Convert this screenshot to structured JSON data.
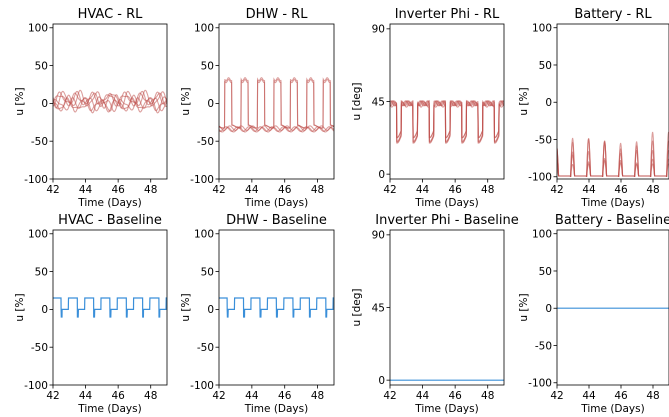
{
  "colors": {
    "rl": "#c0504d",
    "baseline": "#3a8fd9"
  },
  "chart_data": [
    {
      "type": "line",
      "title": "HVAC - RL",
      "xlabel": "Time (Days)",
      "ylabel": "u [%]",
      "xlim": [
        42,
        49
      ],
      "ylim": [
        -100,
        105
      ],
      "xticks": [
        42,
        44,
        46,
        48
      ],
      "yticks": [
        -100,
        -50,
        0,
        50,
        100
      ],
      "pattern": "hvac_rl",
      "series_count": 6
    },
    {
      "type": "line",
      "title": "DHW - RL",
      "xlabel": "Time (Days)",
      "ylabel": "u [%]",
      "xlim": [
        42,
        49
      ],
      "ylim": [
        -100,
        105
      ],
      "xticks": [
        42,
        44,
        46,
        48
      ],
      "yticks": [
        -100,
        -50,
        0,
        50,
        100
      ],
      "pattern": "dhw_rl",
      "series_count": 5,
      "daily_high": 33,
      "daily_low": -30
    },
    {
      "type": "line",
      "title": "Inverter Phi - RL",
      "xlabel": "Time (Days)",
      "ylabel": "u [deg]",
      "xlim": [
        42,
        49
      ],
      "ylim": [
        -3,
        93
      ],
      "xticks": [
        42,
        44,
        46,
        48
      ],
      "yticks": [
        0,
        45,
        90
      ],
      "pattern": "inv_rl",
      "series_count": 5,
      "daily_high": 42,
      "daily_low": 22
    },
    {
      "type": "line",
      "title": "Battery - RL",
      "xlabel": "Time (Days)",
      "ylabel": "u [%]",
      "xlim": [
        42,
        49
      ],
      "ylim": [
        -103,
        105
      ],
      "xticks": [
        42,
        44,
        46,
        48
      ],
      "yticks": [
        -100,
        -50,
        0,
        50,
        100
      ],
      "pattern": "bat_rl",
      "series_count": 5,
      "daily_low": -100,
      "peak_max": -45
    },
    {
      "type": "line",
      "title": "HVAC - Baseline",
      "xlabel": "Time (Days)",
      "ylabel": "u [%]",
      "xlim": [
        42,
        49
      ],
      "ylim": [
        -100,
        105
      ],
      "xticks": [
        42,
        44,
        46,
        48
      ],
      "yticks": [
        -100,
        -50,
        0,
        50,
        100
      ],
      "pattern": "square",
      "series_count": 1,
      "daily_high": 15,
      "daily_low": 0,
      "dip": -10
    },
    {
      "type": "line",
      "title": "DHW - Baseline",
      "xlabel": "Time (Days)",
      "ylabel": "u [%]",
      "xlim": [
        42,
        49
      ],
      "ylim": [
        -100,
        105
      ],
      "xticks": [
        42,
        44,
        46,
        48
      ],
      "yticks": [
        -100,
        -50,
        0,
        50,
        100
      ],
      "pattern": "square",
      "series_count": 1,
      "daily_high": 15,
      "daily_low": 0,
      "dip": -10
    },
    {
      "type": "line",
      "title": "Inverter Phi - Baseline",
      "xlabel": "Time (Days)",
      "ylabel": "u [deg]",
      "xlim": [
        42,
        49
      ],
      "ylim": [
        -3,
        93
      ],
      "xticks": [
        42,
        44,
        46,
        48
      ],
      "yticks": [
        0,
        45,
        90
      ],
      "pattern": "flat",
      "series_count": 1,
      "value": 0
    },
    {
      "type": "line",
      "title": "Battery - Baseline",
      "xlabel": "Time (Days)",
      "ylabel": "u [%]",
      "xlim": [
        42,
        49
      ],
      "ylim": [
        -103,
        105
      ],
      "xticks": [
        42,
        44,
        46,
        48
      ],
      "yticks": [
        -100,
        -50,
        0,
        50,
        100
      ],
      "pattern": "flat",
      "series_count": 1,
      "value": 0
    }
  ]
}
